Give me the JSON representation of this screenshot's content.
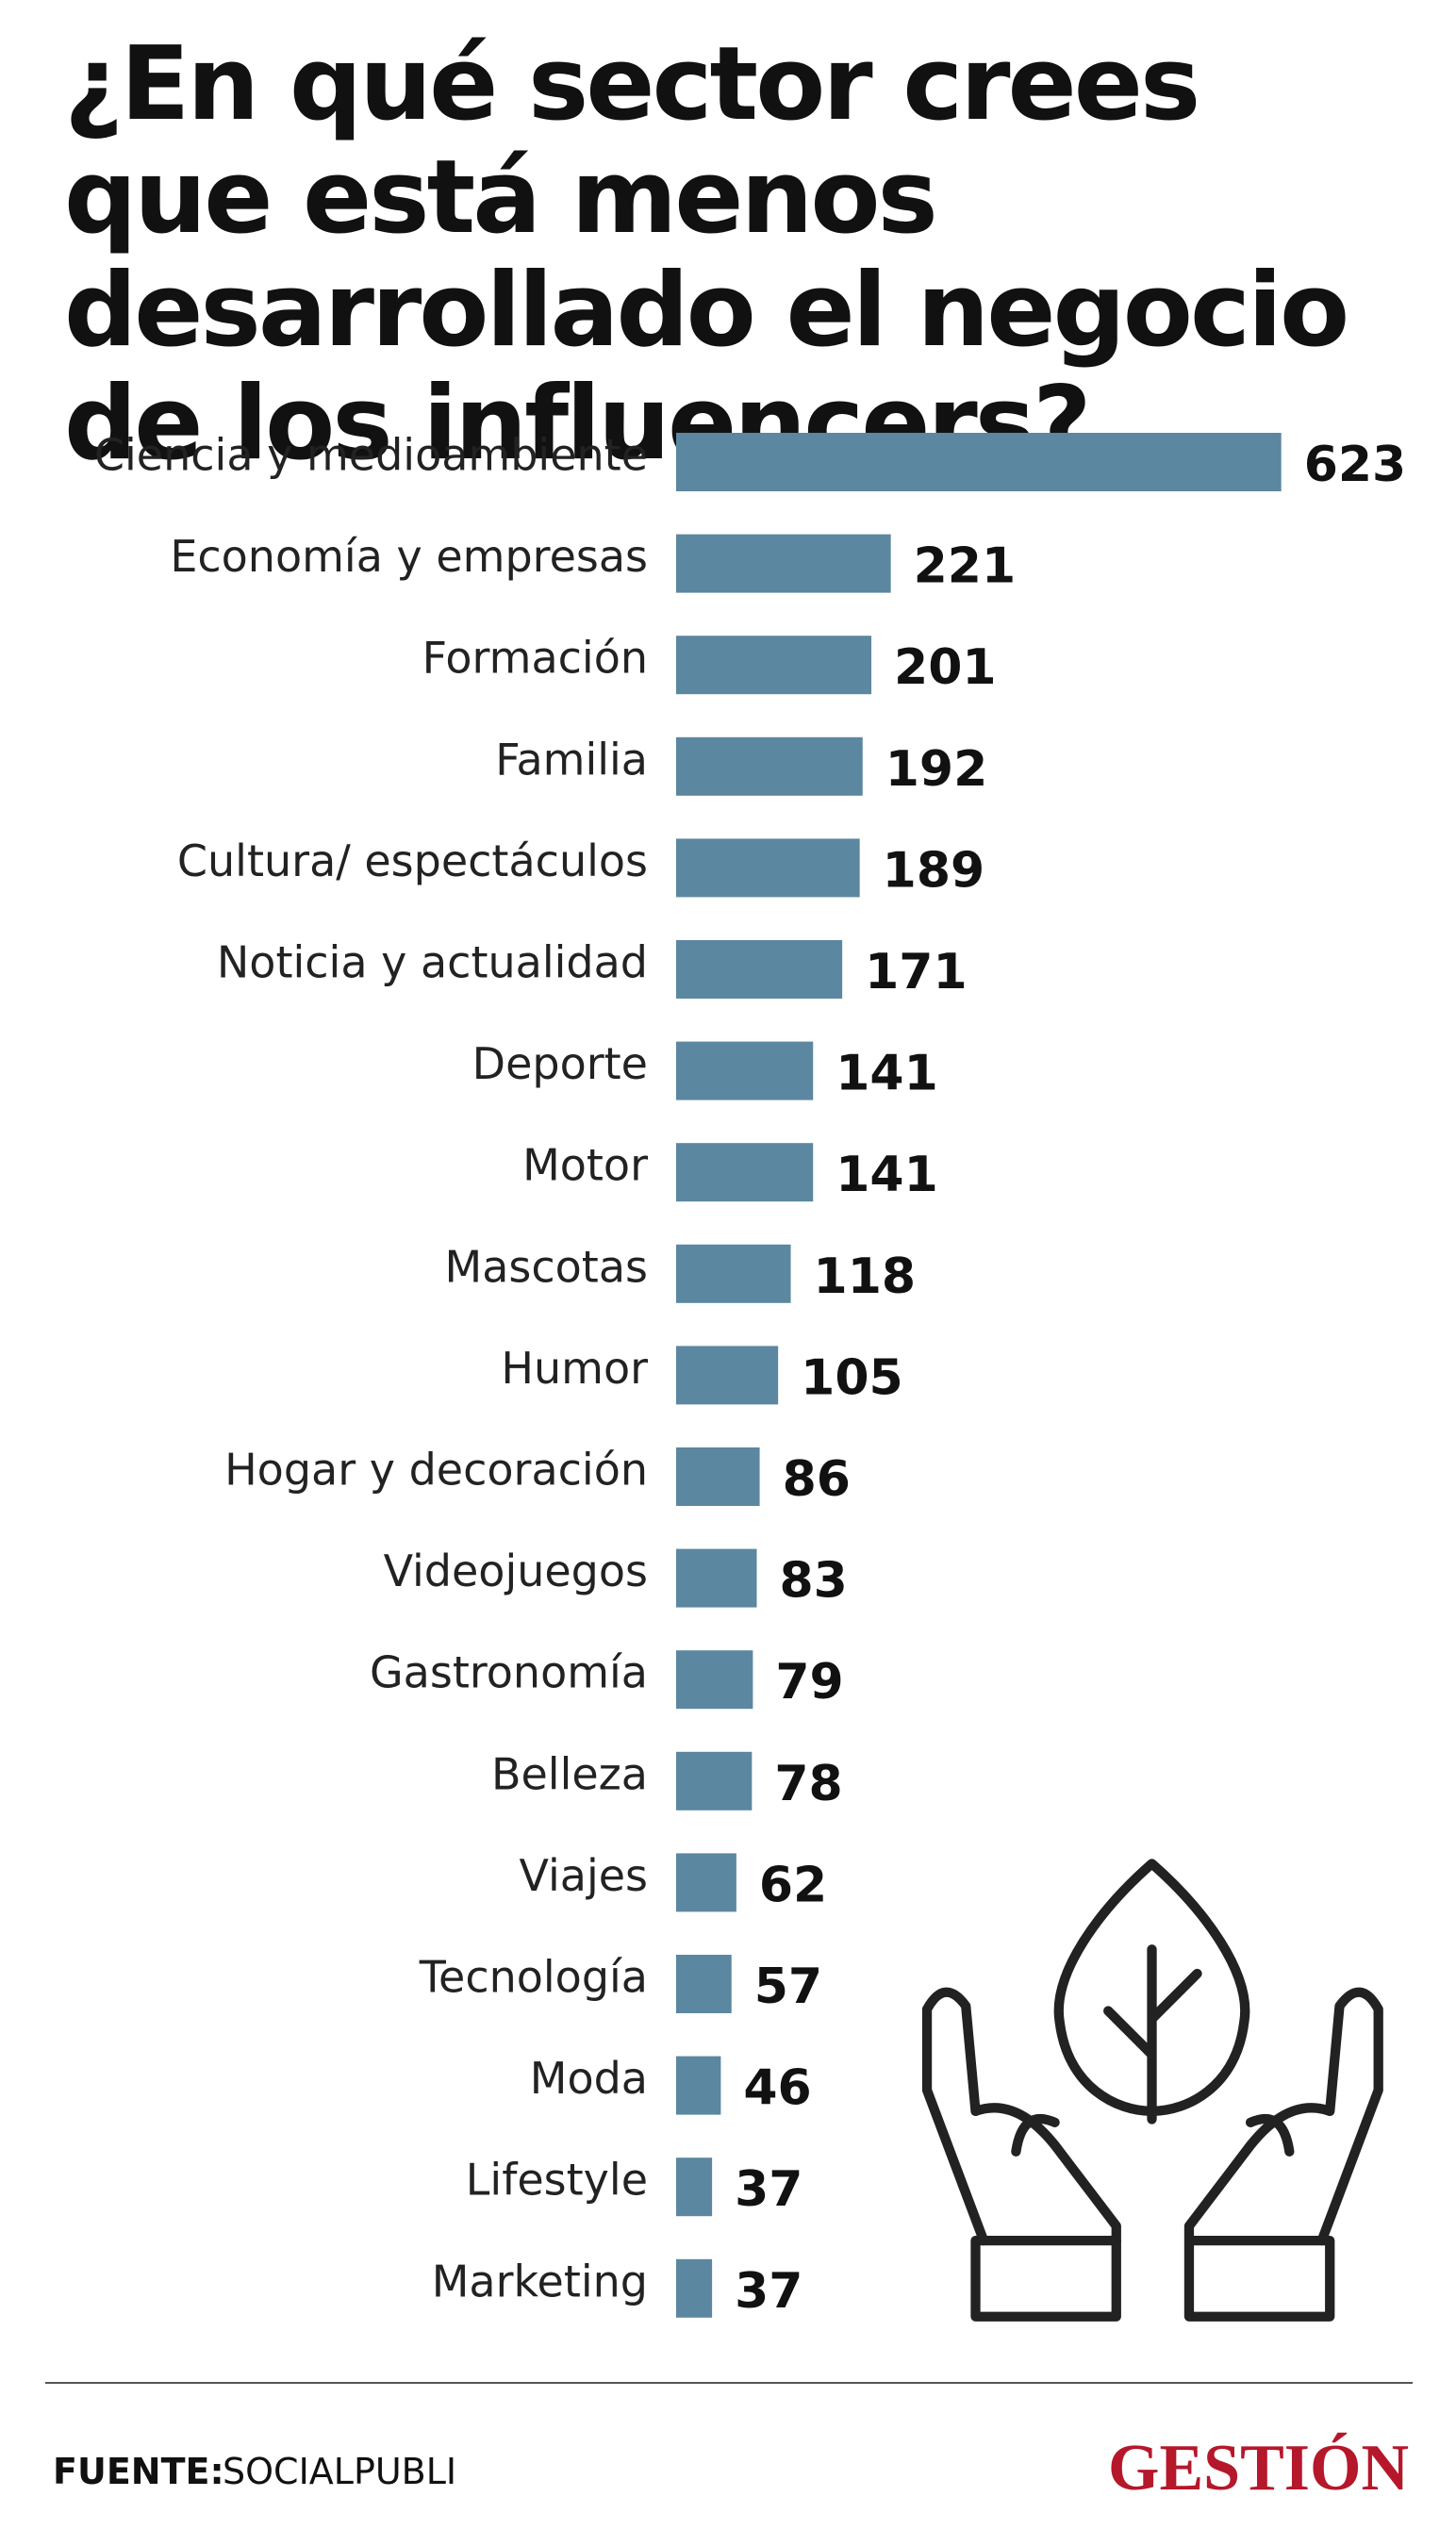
{
  "chart_data": {
    "type": "bar",
    "orientation": "horizontal",
    "title": "¿En qué sector crees que está menos desarrollado el negocio de los influencers?",
    "categories": [
      "Ciencia y medioambiente",
      "Economía y empresas",
      "Formación",
      "Familia",
      "Cultura/ espectáculos",
      "Noticia y actualidad",
      "Deporte",
      "Motor",
      "Mascotas",
      "Humor",
      "Hogar y decoración",
      "Videojuegos",
      "Gastronomía",
      "Belleza",
      "Viajes",
      "Tecnología",
      "Moda",
      "Lifestyle",
      "Marketing"
    ],
    "values": [
      623,
      221,
      201,
      192,
      189,
      171,
      141,
      141,
      118,
      105,
      86,
      83,
      79,
      78,
      62,
      57,
      46,
      37,
      37
    ],
    "color": "#5b87a0"
  },
  "footer": {
    "source_label": "FUENTE:",
    "source": "SOCIALPUBLI",
    "logo": "GESTIÓN"
  }
}
